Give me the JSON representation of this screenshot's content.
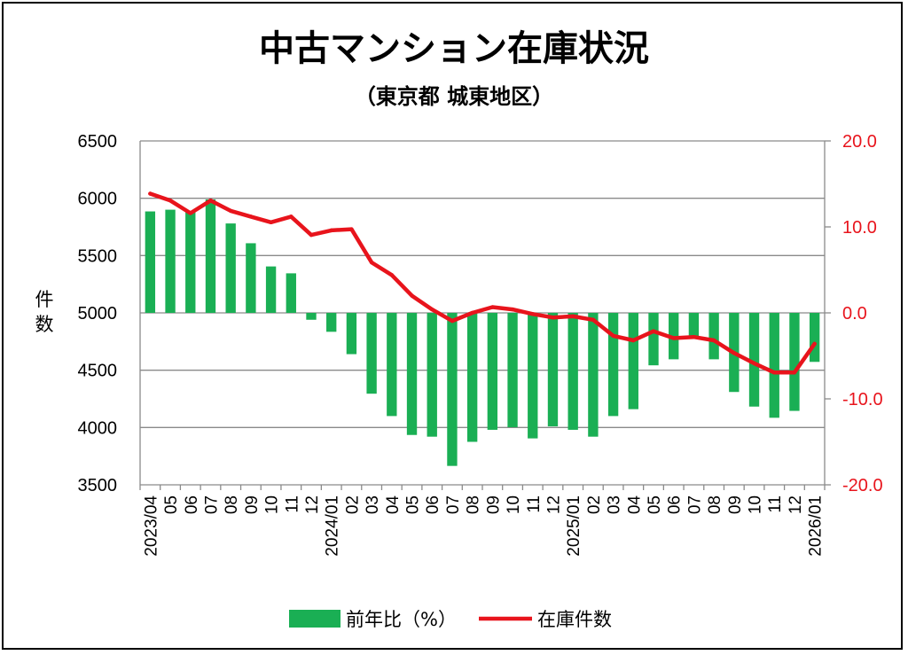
{
  "chart_data": {
    "type": "bar+line",
    "title": "中古マンション在庫状況",
    "subtitle": "（東京都 城東地区）",
    "ylabel": "件数",
    "ylabel_chars": [
      "件",
      "数"
    ],
    "y_left": {
      "min": 3500,
      "max": 6500,
      "step": 500,
      "ticks": [
        "6500",
        "6000",
        "5500",
        "5000",
        "4500",
        "4000",
        "3500"
      ]
    },
    "y_right": {
      "min": -20,
      "max": 20,
      "step": 10,
      "ticks": [
        "20.0",
        "10.0",
        "0.0",
        "-10.0",
        "-20.0"
      ]
    },
    "categories": [
      "2023/04",
      "05",
      "06",
      "07",
      "08",
      "09",
      "10",
      "11",
      "12",
      "2024/01",
      "02",
      "03",
      "04",
      "05",
      "06",
      "07",
      "08",
      "09",
      "10",
      "11",
      "12",
      "2025/01",
      "02",
      "03",
      "04",
      "05",
      "06",
      "07",
      "08",
      "09",
      "10",
      "11",
      "12",
      "2026/01"
    ],
    "series": [
      {
        "name": "前年比（%）",
        "type": "bar",
        "axis": "right",
        "color": "#1aaf54",
        "values": [
          11.8,
          12.0,
          11.7,
          13.2,
          10.4,
          8.1,
          5.4,
          4.6,
          -0.8,
          -2.2,
          -4.8,
          -9.4,
          -12.0,
          -14.2,
          -14.4,
          -17.8,
          -15.0,
          -13.6,
          -13.3,
          -14.6,
          -13.2,
          -13.6,
          -14.4,
          -12.0,
          -11.2,
          -6.1,
          -5.4,
          -2.9,
          -5.4,
          -9.2,
          -10.9,
          -12.2,
          -11.4,
          -5.7
        ]
      },
      {
        "name": "在庫件数",
        "type": "line",
        "axis": "left",
        "color": "#e8141c",
        "values": [
          6040,
          5980,
          5870,
          5980,
          5890,
          5840,
          5790,
          5840,
          5680,
          5720,
          5730,
          5440,
          5330,
          5150,
          5030,
          4930,
          5000,
          5050,
          5030,
          4990,
          4960,
          4970,
          4940,
          4800,
          4760,
          4840,
          4780,
          4790,
          4760,
          4650,
          4560,
          4480,
          4480,
          4730
        ]
      }
    ],
    "right_axis_color": "#e8141c"
  }
}
